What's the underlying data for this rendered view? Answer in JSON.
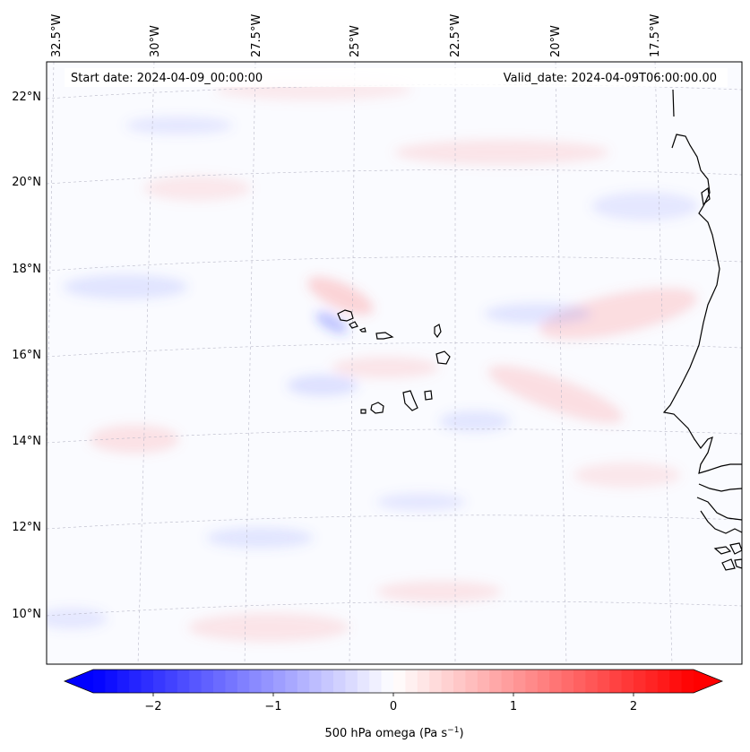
{
  "map": {
    "start_date": "Start date: 2024-04-09_00:00:00",
    "valid_date": "Valid_date: 2024-04-09T06:00:00.00",
    "lon_labels": [
      "32.5°W",
      "30°W",
      "27.5°W",
      "25°W",
      "22.5°W",
      "20°W",
      "17.5°W"
    ],
    "lat_labels": [
      "22°N",
      "20°N",
      "18°N",
      "16°N",
      "14°N",
      "12°N",
      "10°N"
    ],
    "colors": {
      "background": "#fafbff",
      "positive_anomaly": "#ff4040",
      "negative_anomaly": "#4050ff",
      "coastline": "#000000",
      "gridline": "#b8b8c8"
    }
  },
  "colorbar": {
    "label_text": "500 hPa omega (Pa s",
    "label_exp": "−1",
    "label_close": ")",
    "ticks": [
      "−2",
      "−1",
      "0",
      "1",
      "2"
    ],
    "tick_values": [
      -2,
      -1,
      0,
      1,
      2
    ],
    "range": [
      -2.5,
      2.5
    ],
    "low_color": "#0000ff",
    "mid_color": "#ffffff",
    "high_color": "#ff0000"
  }
}
